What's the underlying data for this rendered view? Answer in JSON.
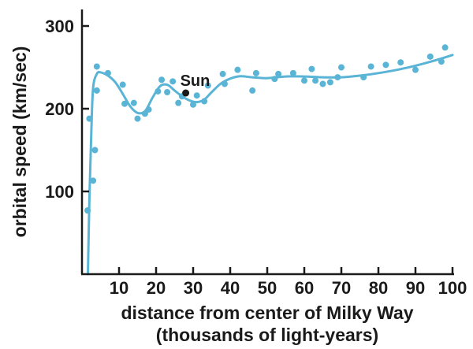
{
  "chart_data": {
    "type": "scatter",
    "title": "",
    "xlabel": "distance from center of Milky Way",
    "xlabel_line2": "(thousands of light-years)",
    "ylabel": "orbital speed (km/sec)",
    "xlim": [
      0,
      100
    ],
    "ylim": [
      0,
      320
    ],
    "xticks": [
      10,
      20,
      30,
      40,
      50,
      60,
      70,
      80,
      90,
      100
    ],
    "yticks": [
      100,
      200,
      300
    ],
    "grid": false,
    "legend": "none",
    "series": [
      {
        "kind": "points",
        "color": "#5ab4d6",
        "x": [
          1.5,
          2,
          3,
          3.5,
          4,
          4,
          7,
          11,
          11.5,
          14,
          15,
          17,
          18,
          20.5,
          21.5,
          23,
          24.5,
          26,
          27,
          30,
          31,
          33,
          34,
          38,
          38.5,
          42,
          46,
          47,
          52,
          53,
          57,
          60,
          62,
          63,
          65,
          67,
          69,
          70,
          76,
          78,
          82,
          86,
          90,
          94,
          97,
          98
        ],
        "y": [
          77,
          188,
          113,
          150,
          222,
          251,
          243,
          229,
          206,
          207,
          188,
          194,
          199,
          221,
          235,
          220,
          233,
          207,
          215,
          205,
          216,
          209,
          228,
          242,
          230,
          247,
          222,
          243,
          236,
          242,
          243,
          234,
          248,
          234,
          230,
          232,
          238,
          250,
          238,
          251,
          253,
          256,
          247,
          263,
          257,
          274
        ]
      },
      {
        "kind": "fit-curve",
        "color": "#5ab4d6",
        "x": [
          1.6,
          2,
          2.5,
          3,
          4,
          5,
          7,
          9,
          11,
          13,
          15,
          17,
          19,
          21,
          23,
          25,
          27,
          29,
          31,
          33,
          35,
          38,
          42,
          46,
          50,
          55,
          60,
          65,
          70,
          75,
          80,
          85,
          90,
          95,
          100
        ],
        "y": [
          0,
          90,
          170,
          225,
          242,
          244,
          240,
          232,
          218,
          203,
          195,
          197,
          213,
          227,
          229,
          222,
          215,
          210,
          208,
          211,
          220,
          232,
          239,
          238,
          237,
          239,
          239,
          238,
          238,
          240,
          243,
          247,
          252,
          258,
          265
        ]
      }
    ],
    "annotations": [
      {
        "label": "Sun",
        "x": 28,
        "y": 219,
        "color": "#1a1a1a"
      }
    ]
  }
}
